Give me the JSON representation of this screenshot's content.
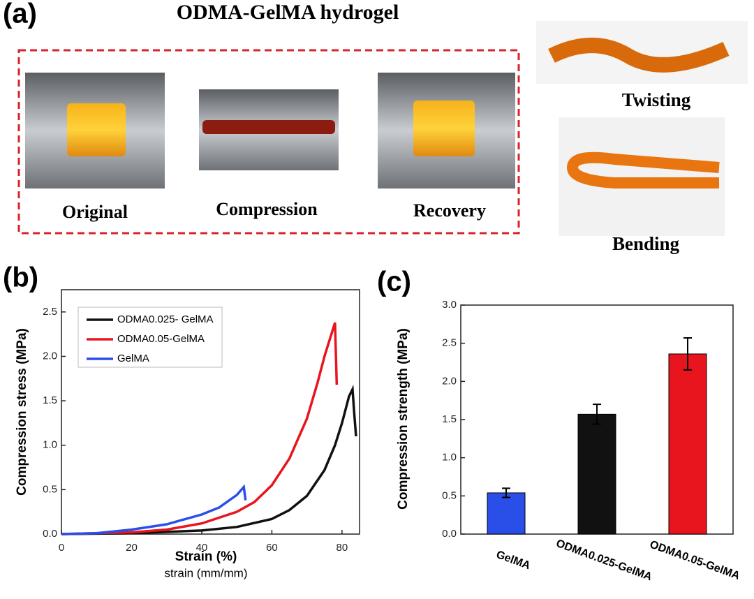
{
  "panel_a": {
    "label": "(a)",
    "title": "ODMA-GelMA hydrogel",
    "photos": [
      "Original",
      "Compression",
      "Recovery"
    ],
    "side_photos": [
      "Twisting",
      "Bending"
    ]
  },
  "panel_b_label": "(b)",
  "panel_c_label": "(c)",
  "chart_data": [
    {
      "type": "line",
      "xlabel": "Strain (%)",
      "xlabel2": "strain (mm/mm)",
      "ylabel": "Compression stress (MPa)",
      "xlim": [
        0,
        85
      ],
      "ylim": [
        0,
        2.75
      ],
      "xticks": [
        0,
        20,
        40,
        60,
        80
      ],
      "yticks": [
        {
          "value": 0,
          "label": "0.0"
        },
        0.5,
        {
          "value": 1,
          "label": "1.0"
        },
        1.5,
        {
          "value": 2,
          "label": "2.0"
        },
        2.5
      ],
      "legend": "upper left",
      "series": [
        {
          "name": "ODMA0.025- GelMA",
          "color": "#111111",
          "x": [
            0,
            20,
            40,
            50,
            60,
            65,
            70,
            75,
            78,
            80,
            82,
            83,
            83.5,
            84
          ],
          "values": [
            0,
            0.01,
            0.04,
            0.08,
            0.17,
            0.27,
            0.43,
            0.72,
            1.0,
            1.25,
            1.55,
            1.63,
            1.35,
            1.1
          ]
        },
        {
          "name": "ODMA0.05-GelMA",
          "color": "#e8141e",
          "x": [
            0,
            20,
            30,
            40,
            50,
            55,
            60,
            65,
            70,
            73,
            75,
            78,
            78.5
          ],
          "values": [
            0,
            0.02,
            0.05,
            0.12,
            0.25,
            0.36,
            0.55,
            0.85,
            1.3,
            1.7,
            2.0,
            2.38,
            1.68
          ]
        },
        {
          "name": "GelMA",
          "color": "#2a4ee8",
          "x": [
            0,
            10,
            20,
            30,
            40,
            45,
            50,
            52,
            52.5
          ],
          "values": [
            0,
            0.01,
            0.05,
            0.11,
            0.22,
            0.3,
            0.44,
            0.53,
            0.38
          ]
        }
      ]
    },
    {
      "type": "bar",
      "ylabel": "Compression strength (MPa)",
      "categories": [
        "GelMA",
        "ODMA0.025-GelMA",
        "ODMA0.05-GelMA"
      ],
      "values": [
        0.54,
        1.57,
        2.36
      ],
      "errors": [
        0.06,
        0.13,
        0.21
      ],
      "colors": [
        "#2a4ee8",
        "#111111",
        "#e8141e"
      ],
      "ylim": [
        0,
        3
      ],
      "yticks": [
        {
          "value": 0,
          "label": "0.0"
        },
        0.5,
        {
          "value": 1,
          "label": "1.0"
        },
        1.5,
        {
          "value": 2,
          "label": "2.0"
        },
        2.5,
        {
          "value": 3,
          "label": "3.0"
        }
      ]
    }
  ]
}
